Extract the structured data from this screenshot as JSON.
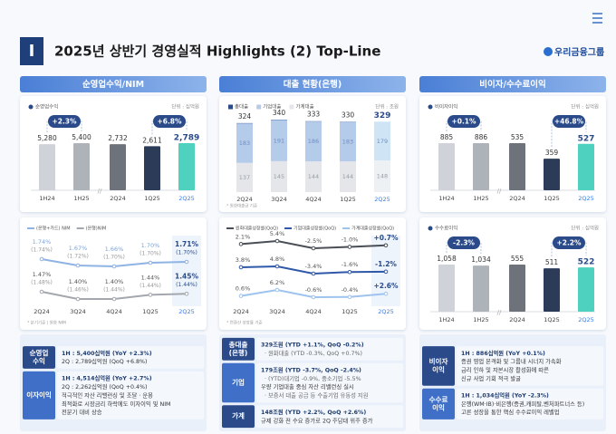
{
  "header": {
    "section": "I",
    "title": "2025년 상반기 경영실적 Highlights  (2) Top-Line",
    "logo": "우리금융그룹"
  },
  "columns": [
    "순영업수익/NIM",
    "대출 현황(은행)",
    "비이자/수수료이익"
  ],
  "chart_data": [
    {
      "type": "bar",
      "legend": "순영업수익",
      "unit": "단위 : 십억원",
      "groups": [
        {
          "categories": [
            "1H24",
            "1H25"
          ],
          "values": [
            5280,
            5400
          ],
          "value_labels": [
            "5,280",
            "5,400"
          ],
          "colors": [
            "#cfd3d9",
            "#aeb2b9"
          ],
          "badge": "+2.3%"
        },
        {
          "categories": [
            "2Q24",
            "1Q25",
            "2Q25"
          ],
          "values": [
            2732,
            2611,
            2789
          ],
          "value_labels": [
            "2,732",
            "2,611",
            "2,789"
          ],
          "colors": [
            "#6e737b",
            "#2c3b57",
            "#4fd1bf"
          ],
          "badge": "+6.8%"
        }
      ]
    },
    {
      "type": "line",
      "categories": [
        "2Q24",
        "3Q24",
        "4Q24",
        "1Q25",
        "2Q25"
      ],
      "series": [
        {
          "name": "(은행+카드) NIM",
          "color": "#8fb3e3",
          "values": [
            1.74,
            1.67,
            1.66,
            1.7,
            1.71
          ],
          "value_labels": [
            "1.74%",
            "1.67%",
            "1.66%",
            "1.70%",
            "1.71%"
          ],
          "sub_labels": [
            "(1.74%)",
            "(1.72%)",
            "(1.70%)",
            "(1.70%)",
            "(1.70%)"
          ]
        },
        {
          "name": "(은행)NIM",
          "color": "#a3a7ae",
          "values": [
            1.47,
            1.4,
            1.4,
            1.44,
            1.45
          ],
          "value_labels": [
            "1.47%",
            "1.40%",
            "1.40%",
            "1.44%",
            "1.45%"
          ],
          "sub_labels": [
            "(1.48%)",
            "(1.46%)",
            "(1.44%)",
            "(1.44%)",
            "(1.44%)"
          ]
        }
      ],
      "note": "* 분기기준 | 원화 NIM"
    },
    {
      "type": "stacked_bar",
      "unit": "단위 : 조원",
      "categories": [
        "2Q24",
        "3Q24",
        "4Q24",
        "1Q25",
        "2Q25"
      ],
      "total": {
        "name": "총대출",
        "color": "#2a4a8a",
        "values": [
          324,
          340,
          333,
          330,
          329
        ]
      },
      "series": [
        {
          "name": "가계대출",
          "color": "#e4e6ea",
          "values": [
            137,
            145,
            144,
            144,
            148
          ]
        },
        {
          "name": "기업대출",
          "color": "#b5cbea",
          "values": [
            183,
            191,
            186,
            183,
            179
          ]
        }
      ],
      "note": "* 원화대출금 기준"
    },
    {
      "type": "line",
      "categories": [
        "2Q24",
        "3Q24",
        "4Q24",
        "1Q25",
        "2Q25"
      ],
      "series": [
        {
          "name": "원화대출성장률(QoQ)",
          "color": "#4a4f57",
          "values": [
            2.1,
            5.4,
            -2.5,
            -1.0,
            0.7
          ],
          "value_labels": [
            "2.1%",
            "5.4%",
            "-2.5%",
            "-1.0%",
            "+0.7%"
          ]
        },
        {
          "name": "기업대출성장률(QoQ)",
          "color": "#2f58a8",
          "values": [
            3.8,
            4.8,
            -3.4,
            -1.6,
            -1.2
          ],
          "value_labels": [
            "3.8%",
            "4.8%",
            "-3.4%",
            "-1.6%",
            "-1.2%"
          ]
        },
        {
          "name": "가계대출성장률(QoQ)",
          "color": "#9ec3ee",
          "values": [
            0.6,
            6.2,
            -0.6,
            -0.4,
            2.6
          ],
          "value_labels": [
            "0.6%",
            "6.2%",
            "-0.6%",
            "-0.4%",
            "+2.6%"
          ]
        }
      ],
      "note": "* 연환산 성장률 기준"
    },
    {
      "type": "bar",
      "legend": "비이자이익",
      "unit": "단위 : 십억원",
      "groups": [
        {
          "categories": [
            "1H24",
            "1H25"
          ],
          "values": [
            885,
            886
          ],
          "value_labels": [
            "885",
            "886"
          ],
          "colors": [
            "#cfd3d9",
            "#aeb2b9"
          ],
          "badge": "+0.1%"
        },
        {
          "categories": [
            "2Q24",
            "1Q25",
            "2Q25"
          ],
          "values": [
            535,
            359,
            527
          ],
          "value_labels": [
            "535",
            "359",
            "527"
          ],
          "colors": [
            "#6e737b",
            "#2c3b57",
            "#4fd1bf"
          ],
          "badge": "+46.8%"
        }
      ]
    },
    {
      "type": "bar",
      "legend": "수수료이익",
      "unit": "단위 : 십억원",
      "groups": [
        {
          "categories": [
            "1H24",
            "1H25"
          ],
          "values": [
            1058,
            1034
          ],
          "value_labels": [
            "1,058",
            "1,034"
          ],
          "colors": [
            "#cfd3d9",
            "#aeb2b9"
          ],
          "badge": "-2.3%"
        },
        {
          "categories": [
            "2Q24",
            "1Q25",
            "2Q25"
          ],
          "values": [
            555,
            511,
            522
          ],
          "value_labels": [
            "555",
            "511",
            "522"
          ],
          "colors": [
            "#6e737b",
            "#2c3b57",
            "#4fd1bf"
          ],
          "badge": "+2.2%"
        }
      ]
    }
  ],
  "summary": [
    [
      {
        "label": [
          "순영업",
          "수익"
        ],
        "lines": [
          "1H : 5,400십억원 (YoY +2.3%)",
          "2Q : 2,789십억원 (QoQ +6.8%)"
        ]
      },
      {
        "label": [
          "이자이익"
        ],
        "lines": [
          "1H : 4,514십억원 (YoY +2.7%)",
          "2Q : 2,262십억원 (QoQ +0.4%)",
          "적극적인 자산 리밸런싱 및 조달 · 운용",
          "최적화로 시장금리 하락에도 이자이익 및 NIM",
          "전분기 대비 상승"
        ]
      }
    ],
    [
      {
        "label": [
          "총대출",
          "(은행)"
        ],
        "lines": [
          "329조원 (YTD +1.1%, QoQ -0.2%)",
          "· 원화대출 (YTD -0.3%, QoQ +0.7%)"
        ]
      },
      {
        "label": [
          "기업"
        ],
        "lines": [
          "179조원 (YTD -3.7%, QoQ -2.4%)",
          "· (YTD)대기업 -0.9%, 중소기업 -5.5%",
          "우량 기업대출 중심 자산 리밸런싱 실시",
          "· 보증서 대출 공급 등 수출기업 유동성 지원"
        ]
      },
      {
        "label": [
          "가계"
        ],
        "lines": [
          "148조원 (YTD +2.2%, QoQ +2.6%)",
          "규제 강화 전 수요 증가로 2Q 주담대 위주 증가"
        ]
      }
    ],
    [
      {
        "label": [
          "비이자",
          "이익"
        ],
        "lines": [
          "1H : 886십억원 (YoY +0.1%)",
          "증권 영업 본격화 및 그룹내 시너지 가속화",
          "금리 인하 및 자본시장 활성화에 따른",
          "신규 사업 기회 적극 발굴"
        ]
      },
      {
        "label": [
          "수수료",
          "이익"
        ],
        "lines": [
          "1H : 1,034십억원 (YoY -2.3%)",
          "은행(WM·IB)·비은행(증권,캐피탈,벤처파트너스 등)",
          "고른 성장을 통한 핵심 수수료이익 레벨업"
        ]
      }
    ]
  ]
}
